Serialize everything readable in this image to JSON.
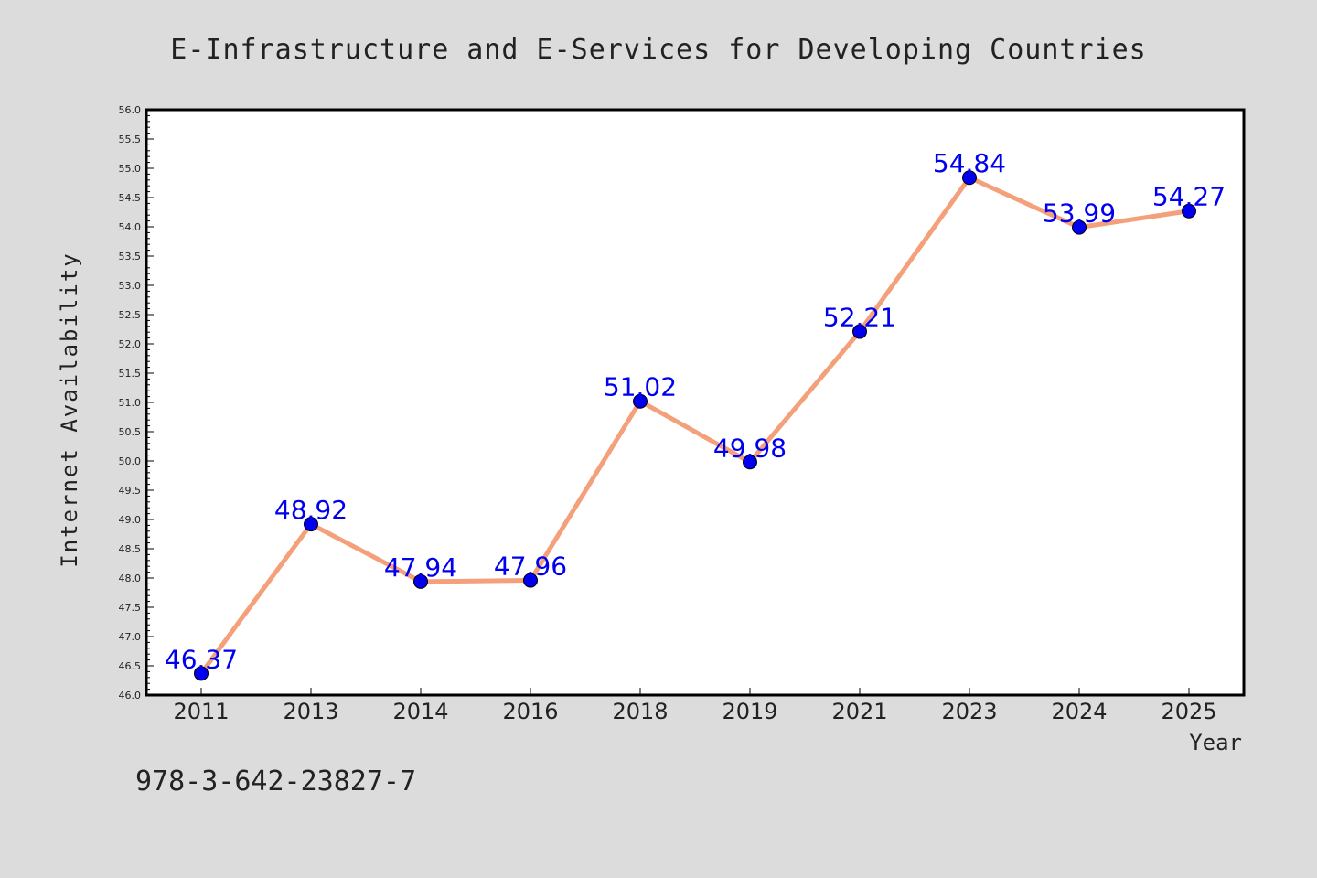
{
  "chart_data": {
    "type": "line",
    "title": "E-Infrastructure and E-Services for Developing Countries",
    "xlabel": "Year",
    "ylabel": "Internet Availability",
    "categories": [
      "2011",
      "2013",
      "2014",
      "2016",
      "2018",
      "2019",
      "2021",
      "2023",
      "2024",
      "2025"
    ],
    "series": [
      {
        "values": [
          46.37,
          48.92,
          47.94,
          47.96,
          51.02,
          49.98,
          52.21,
          54.84,
          53.99,
          54.27
        ],
        "labels": [
          "46.37",
          "48.92",
          "47.94",
          "47.96",
          "51.02",
          "49.98",
          "52.21",
          "54.84",
          "53.99",
          "54.27"
        ],
        "line_color": "#f4a07a",
        "marker_color": "#0000ee",
        "label_color": "#0000ee"
      }
    ],
    "ylim": [
      46.0,
      56.0
    ],
    "yticks": [
      "46.0",
      "46.5",
      "47.0",
      "47.5",
      "48.0",
      "48.5",
      "49.0",
      "49.5",
      "50.0",
      "50.5",
      "51.0",
      "51.5",
      "52.0",
      "52.5",
      "53.0",
      "53.5",
      "54.0",
      "54.5",
      "55.0",
      "55.5",
      "56.0"
    ],
    "grid": false,
    "legend": "none"
  },
  "annotation": {
    "text": "978-3-642-23827-7"
  },
  "colors": {
    "background": "#dcdcdc",
    "plot_background": "#ffffff",
    "axis": "#000000"
  }
}
